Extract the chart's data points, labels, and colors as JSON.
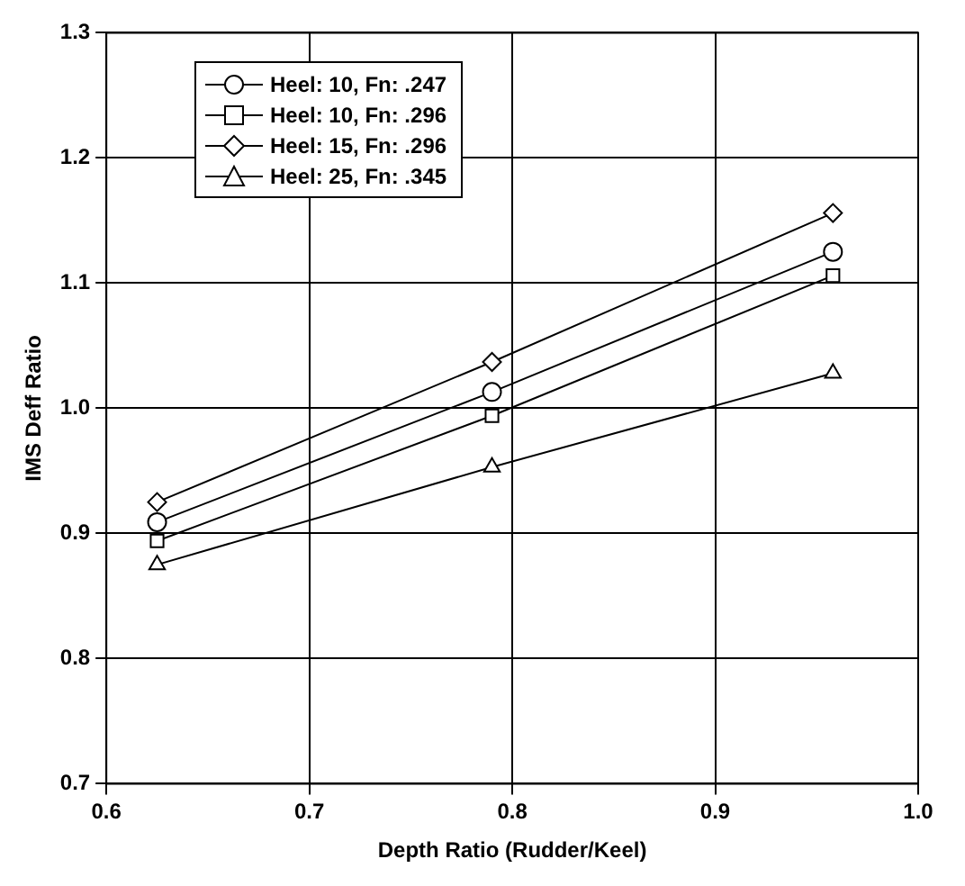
{
  "chart_data": {
    "type": "line",
    "xlabel": "Depth Ratio (Rudder/Keel)",
    "ylabel": "IMS Deff Ratio",
    "xlim": [
      0.6,
      1.0
    ],
    "xticks": [
      0.6,
      0.7,
      0.8,
      0.9,
      {
        "value": 1,
        "label": "1.0"
      }
    ],
    "ylim": [
      0.7,
      1.3
    ],
    "yticks": [
      0.7,
      0.8,
      0.9,
      {
        "value": 1,
        "label": "1.0"
      },
      1.1,
      1.2,
      1.3
    ],
    "grid": true,
    "legend": "top left",
    "line_style": "solid",
    "x": [
      0.625,
      0.79,
      0.958
    ],
    "series": [
      {
        "name": "Heel: 10, Fn: .247",
        "color": "#000000",
        "marker": "circle",
        "values": [
          0.909,
          1.013,
          1.125
        ]
      },
      {
        "name": "Heel: 10, Fn: .296",
        "color": "#000000",
        "marker": "square",
        "values": [
          0.894,
          0.994,
          1.106
        ]
      },
      {
        "name": "Heel: 15, Fn: .296",
        "color": "#000000",
        "marker": "diamond",
        "values": [
          0.925,
          1.037,
          1.156
        ]
      },
      {
        "name": "Heel: 25, Fn: .345",
        "color": "#000000",
        "marker": "triangle",
        "values": [
          0.875,
          0.953,
          1.028
        ]
      }
    ]
  }
}
